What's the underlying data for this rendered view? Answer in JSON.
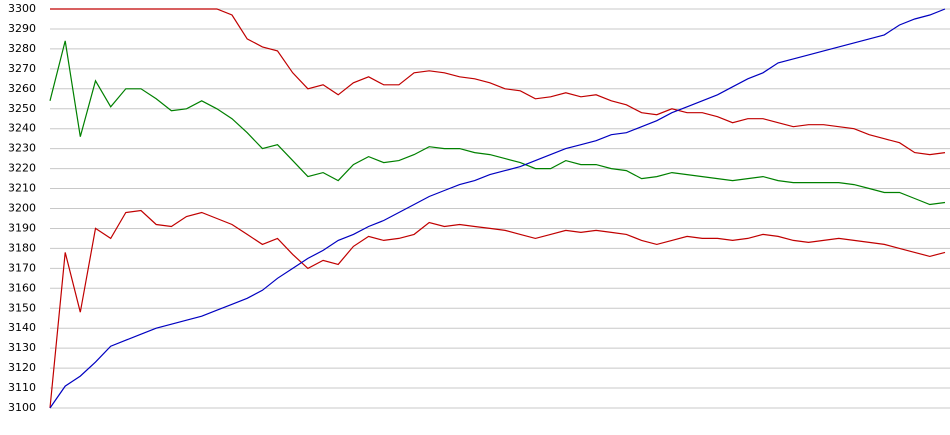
{
  "chart_data": {
    "type": "line",
    "ylim": [
      3100,
      3300
    ],
    "yticks": [
      3100,
      3110,
      3120,
      3130,
      3140,
      3150,
      3160,
      3170,
      3180,
      3190,
      3200,
      3210,
      3220,
      3230,
      3240,
      3250,
      3260,
      3270,
      3280,
      3290,
      3300
    ],
    "grid": true,
    "series": [
      {
        "color": "#c00000",
        "values": [
          3300,
          3300,
          3300,
          3300,
          3300,
          3300,
          3300,
          3300,
          3300,
          3300,
          3300,
          3300,
          3297,
          3285,
          3281,
          3279,
          3268,
          3260,
          3262,
          3257,
          3263,
          3266,
          3262,
          3262,
          3268,
          3269,
          3268,
          3266,
          3265,
          3263,
          3260,
          3259,
          3255,
          3256,
          3258,
          3256,
          3257,
          3254,
          3252,
          3248,
          3247,
          3250,
          3248,
          3248,
          3246,
          3243,
          3245,
          3245,
          3243,
          3241,
          3242,
          3242,
          3241,
          3240,
          3237,
          3235,
          3233,
          3228,
          3227,
          3228
        ]
      },
      {
        "color": "#008000",
        "values": [
          3254,
          3284,
          3236,
          3264,
          3251,
          3260,
          3260,
          3255,
          3249,
          3250,
          3254,
          3250,
          3245,
          3238,
          3230,
          3232,
          3224,
          3216,
          3218,
          3214,
          3222,
          3226,
          3223,
          3224,
          3227,
          3231,
          3230,
          3230,
          3228,
          3227,
          3225,
          3223,
          3220,
          3220,
          3224,
          3222,
          3222,
          3220,
          3219,
          3215,
          3216,
          3218,
          3217,
          3216,
          3215,
          3214,
          3215,
          3216,
          3214,
          3213,
          3213,
          3213,
          3213,
          3212,
          3210,
          3208,
          3208,
          3205,
          3202,
          3203
        ]
      },
      {
        "color": "#c00000",
        "values": [
          3100,
          3178,
          3148,
          3190,
          3185,
          3198,
          3199,
          3192,
          3191,
          3196,
          3198,
          3195,
          3192,
          3187,
          3182,
          3185,
          3177,
          3170,
          3174,
          3172,
          3181,
          3186,
          3184,
          3185,
          3187,
          3193,
          3191,
          3192,
          3191,
          3190,
          3189,
          3187,
          3185,
          3187,
          3189,
          3188,
          3189,
          3188,
          3187,
          3184,
          3182,
          3184,
          3186,
          3185,
          3185,
          3184,
          3185,
          3187,
          3186,
          3184,
          3183,
          3184,
          3185,
          3184,
          3183,
          3182,
          3180,
          3178,
          3176,
          3178
        ]
      },
      {
        "color": "#0000c0",
        "values": [
          3100,
          3111,
          3116,
          3123,
          3131,
          3134,
          3137,
          3140,
          3142,
          3144,
          3146,
          3149,
          3152,
          3155,
          3159,
          3165,
          3170,
          3175,
          3179,
          3184,
          3187,
          3191,
          3194,
          3198,
          3202,
          3206,
          3209,
          3212,
          3214,
          3217,
          3219,
          3221,
          3224,
          3227,
          3230,
          3232,
          3234,
          3237,
          3238,
          3241,
          3244,
          3248,
          3251,
          3254,
          3257,
          3261,
          3265,
          3268,
          3273,
          3275,
          3277,
          3279,
          3281,
          3283,
          3285,
          3287,
          3292,
          3295,
          3297,
          3300
        ]
      }
    ]
  }
}
